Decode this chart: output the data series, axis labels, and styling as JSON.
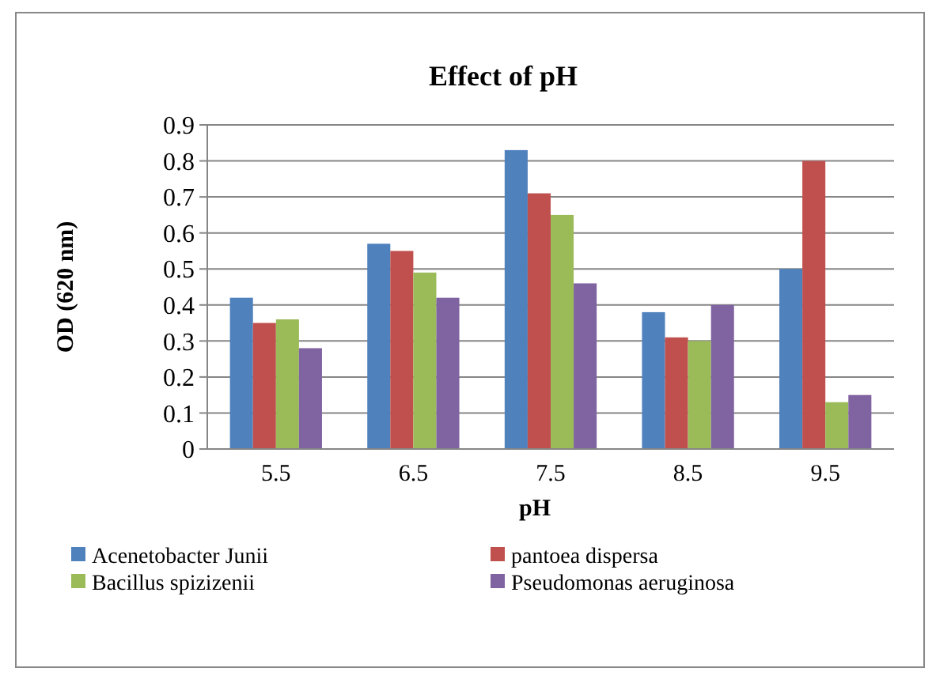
{
  "chart_data": {
    "type": "bar",
    "title": "Effect of pH",
    "xlabel": "pH",
    "ylabel": "OD (620 nm)",
    "categories": [
      "5.5",
      "6.5",
      "7.5",
      "8.5",
      "9.5"
    ],
    "series": [
      {
        "name": "Acenetobacter Junii",
        "color": "#4f81bd",
        "values": [
          0.42,
          0.57,
          0.83,
          0.38,
          0.5
        ]
      },
      {
        "name": "pantoea dispersa",
        "color": "#c0504d",
        "values": [
          0.35,
          0.55,
          0.71,
          0.31,
          0.8
        ]
      },
      {
        "name": "Bacillus spizizenii",
        "color": "#9bbb59",
        "values": [
          0.36,
          0.49,
          0.65,
          0.3,
          0.13
        ]
      },
      {
        "name": "Pseudomonas aeruginosa",
        "color": "#8064a2",
        "values": [
          0.28,
          0.42,
          0.46,
          0.4,
          0.15
        ]
      }
    ],
    "ylim": [
      0,
      0.9
    ],
    "yticks": [
      0,
      0.1,
      0.2,
      0.3,
      0.4,
      0.5,
      0.6,
      0.7,
      0.8,
      0.9
    ],
    "grid": "y",
    "legend": "bottom"
  }
}
